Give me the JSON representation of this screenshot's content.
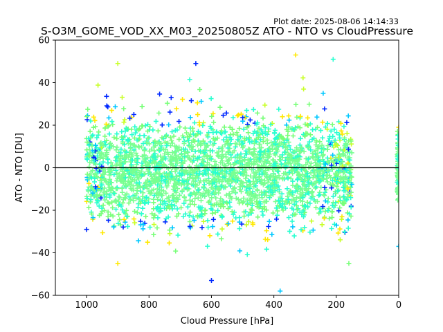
{
  "chart_data": {
    "type": "scatter",
    "title": "S-O3M_GOME_VOD_XX_M03_20250805Z ATO - NTO vs CloudPressure",
    "subtitle": "Plot date: 2025-08-06 14:14:33",
    "xlabel": "Cloud Pressure [hPa]",
    "ylabel": "ATO - NTO [DU]",
    "xlim": [
      1100,
      0
    ],
    "ylim": [
      -60,
      60
    ],
    "x_inverted": true,
    "x_ticks": [
      1000,
      800,
      600,
      400,
      200,
      0
    ],
    "y_ticks": [
      -60,
      -40,
      -20,
      0,
      20,
      40,
      60
    ],
    "grid": false,
    "reference_line_y": 0,
    "marker": "+",
    "colormap": "jet",
    "point_colors": [
      "#0028ff",
      "#00c8ff",
      "#28ffd0",
      "#78ff78",
      "#c8ff28",
      "#ffe800"
    ],
    "bulk_color": "#78ff90",
    "description": "Dense cloud of points for cloud pressure between ~1000 and ~150 hPa; bulk centered near 0 DU spanning about -25 to +25 DU, outliers to about -58 and +53 DU; a few points at 0 hPa.",
    "clusters": [
      {
        "x_range": [
          1000,
          150
        ],
        "y_center": -2,
        "y_spread": 13
      },
      {
        "x_range": [
          5,
          0
        ],
        "y_center": -2,
        "y_spread": 12
      }
    ],
    "outliers": [
      {
        "x": 330,
        "y": 53
      },
      {
        "x": 210,
        "y": 51
      },
      {
        "x": 650,
        "y": 49
      },
      {
        "x": 900,
        "y": 49
      },
      {
        "x": 380,
        "y": -58
      },
      {
        "x": 600,
        "y": -53
      },
      {
        "x": 1000,
        "y": -29
      },
      {
        "x": 900,
        "y": -45
      },
      {
        "x": 0,
        "y": -37
      },
      {
        "x": 0,
        "y": 19
      }
    ]
  }
}
